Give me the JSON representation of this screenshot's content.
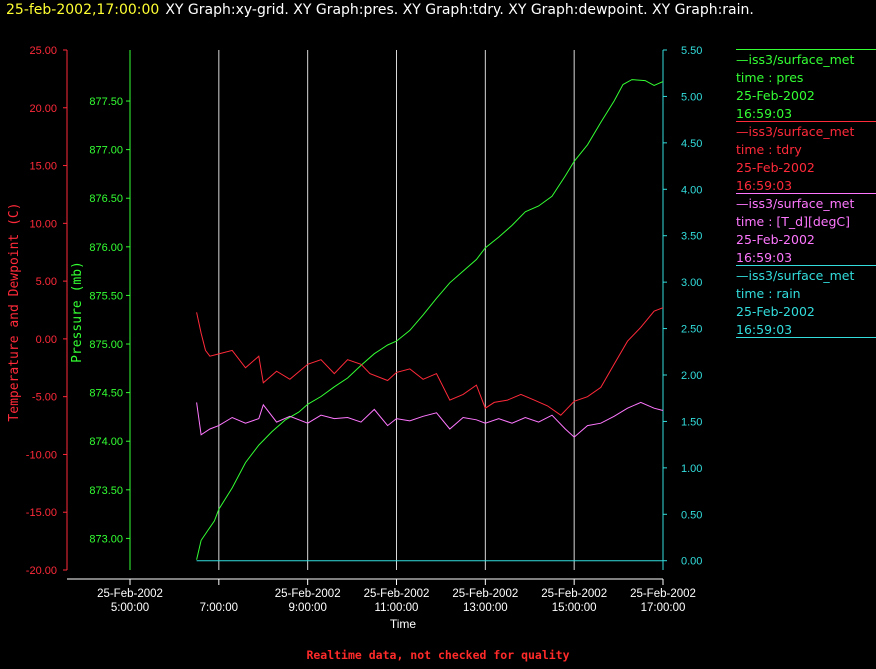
{
  "header": {
    "datetime": "25-feb-2002,17:00:00",
    "graphs": "XY Graph:xy-grid.  XY Graph:pres.  XY Graph:tdry.  XY Graph:dewpoint.  XY Graph:rain."
  },
  "colors": {
    "pres": "#33ff33",
    "tdry": "#ff2a3a",
    "dewpoint": "#ff77ff",
    "rain": "#33dddd",
    "grid": "#d8d8d8"
  },
  "legend": [
    {
      "source": "—iss3/surface_met",
      "label": "time : pres",
      "date": "25-Feb-2002",
      "time": "16:59:03",
      "color": "#33ff33"
    },
    {
      "source": "—iss3/surface_met",
      "label": "time : tdry",
      "date": "25-Feb-2002",
      "time": "16:59:03",
      "color": "#ff2a3a"
    },
    {
      "source": "—iss3/surface_met",
      "label": "time : [T_d][degC]",
      "date": "25-Feb-2002",
      "time": "16:59:03",
      "color": "#ff77ff"
    },
    {
      "source": "—iss3/surface_met",
      "label": "time : rain",
      "date": "25-Feb-2002",
      "time": "16:59:03",
      "color": "#33dddd"
    }
  ],
  "footer": "Realtime data, not checked for quality",
  "chart_data": {
    "type": "line",
    "xlabel": "Time",
    "x_ticks": [
      {
        "date": "25-Feb-2002",
        "time": "5:00:00"
      },
      {
        "date": "",
        "time": "7:00:00"
      },
      {
        "date": "25-Feb-2002",
        "time": "9:00:00"
      },
      {
        "date": "25-Feb-2002",
        "time": "11:00:00"
      },
      {
        "date": "25-Feb-2002",
        "time": "13:00:00"
      },
      {
        "date": "25-Feb-2002",
        "time": "15:00:00"
      },
      {
        "date": "25-Feb-2002",
        "time": "17:00:00"
      }
    ],
    "x_range_hours": [
      5,
      17
    ],
    "grid": true,
    "axes": {
      "temp": {
        "label": "Temperature and Dewpoint (C)",
        "range": [
          -20,
          25
        ],
        "ticks": [
          "25.00",
          "20.00",
          "15.00",
          "10.00",
          "5.00",
          "0.00",
          "-5.00",
          "-10.00",
          "-15.00",
          "-20.00"
        ]
      },
      "pres": {
        "label": "Pressure (mb)",
        "range": [
          872.675,
          878.025
        ],
        "ticks": [
          "877.50",
          "877.00",
          "876.50",
          "876.00",
          "875.50",
          "875.00",
          "874.50",
          "874.00",
          "873.50",
          "873.00"
        ]
      },
      "rain": {
        "label": "",
        "range": [
          -0.1,
          5.5
        ],
        "ticks": [
          "5.50",
          "5.00",
          "4.50",
          "4.00",
          "3.50",
          "3.00",
          "2.50",
          "2.00",
          "1.50",
          "1.00",
          "0.50",
          "0.00"
        ]
      }
    },
    "series": [
      {
        "name": "time : pres",
        "axis": "pres",
        "x": [
          6.5,
          6.6,
          6.75,
          6.9,
          7.0,
          7.3,
          7.6,
          7.9,
          8.2,
          8.5,
          8.8,
          9.0,
          9.3,
          9.6,
          9.9,
          10.2,
          10.5,
          10.8,
          11.0,
          11.3,
          11.6,
          11.9,
          12.2,
          12.5,
          12.8,
          13.0,
          13.3,
          13.6,
          13.9,
          14.2,
          14.5,
          14.8,
          15.0,
          15.3,
          15.6,
          15.9,
          16.1,
          16.3,
          16.6,
          16.8,
          17.0
        ],
        "y": [
          872.78,
          872.98,
          873.08,
          873.18,
          873.3,
          873.52,
          873.78,
          873.96,
          874.1,
          874.22,
          874.3,
          874.38,
          874.46,
          874.56,
          874.65,
          874.78,
          874.9,
          874.99,
          875.03,
          875.14,
          875.3,
          875.47,
          875.63,
          875.75,
          875.87,
          875.99,
          876.1,
          876.22,
          876.36,
          876.42,
          876.52,
          876.73,
          876.88,
          877.05,
          877.28,
          877.5,
          877.67,
          877.72,
          877.71,
          877.66,
          877.7
        ]
      },
      {
        "name": "time : tdry",
        "axis": "temp",
        "x": [
          6.5,
          6.6,
          6.7,
          6.8,
          7.0,
          7.3,
          7.6,
          7.9,
          8.0,
          8.3,
          8.6,
          9.0,
          9.3,
          9.6,
          9.9,
          10.2,
          10.4,
          10.8,
          11.0,
          11.3,
          11.6,
          11.9,
          12.2,
          12.5,
          12.8,
          13.0,
          13.2,
          13.5,
          13.8,
          14.1,
          14.4,
          14.7,
          15.0,
          15.3,
          15.6,
          15.9,
          16.2,
          16.5,
          16.8,
          17.0
        ],
        "y": [
          2.3,
          0.5,
          -1.0,
          -1.5,
          -1.3,
          -1.0,
          -2.5,
          -1.5,
          -3.8,
          -2.8,
          -3.5,
          -2.2,
          -1.8,
          -3.0,
          -1.8,
          -2.2,
          -3.0,
          -3.6,
          -2.9,
          -2.6,
          -3.5,
          -3.0,
          -5.3,
          -4.8,
          -4.0,
          -6.0,
          -5.5,
          -5.3,
          -4.8,
          -5.3,
          -5.8,
          -6.6,
          -5.4,
          -5.0,
          -4.2,
          -2.2,
          -0.2,
          1.0,
          2.4,
          2.7
        ]
      },
      {
        "name": "time : [T_d][degC]",
        "axis": "temp",
        "x": [
          6.5,
          6.6,
          6.8,
          7.0,
          7.3,
          7.6,
          7.9,
          8.0,
          8.3,
          8.6,
          9.0,
          9.3,
          9.6,
          9.9,
          10.2,
          10.5,
          10.8,
          11.0,
          11.3,
          11.6,
          11.9,
          12.2,
          12.5,
          12.8,
          13.0,
          13.3,
          13.6,
          13.9,
          14.2,
          14.5,
          14.8,
          15.0,
          15.3,
          15.6,
          15.9,
          16.2,
          16.5,
          16.8,
          17.0
        ],
        "y": [
          -5.5,
          -8.3,
          -7.8,
          -7.5,
          -6.8,
          -7.3,
          -6.9,
          -5.7,
          -7.2,
          -6.7,
          -7.3,
          -6.6,
          -6.9,
          -6.8,
          -7.2,
          -6.1,
          -7.5,
          -6.9,
          -7.1,
          -6.7,
          -6.4,
          -7.8,
          -6.8,
          -7.0,
          -7.3,
          -6.9,
          -7.3,
          -6.8,
          -7.2,
          -6.6,
          -7.8,
          -8.5,
          -7.5,
          -7.3,
          -6.7,
          -6.0,
          -5.5,
          -6.0,
          -6.2
        ]
      },
      {
        "name": "time : rain",
        "axis": "rain",
        "x": [
          6.5,
          17.0
        ],
        "y": [
          0.0,
          0.0
        ]
      }
    ]
  }
}
